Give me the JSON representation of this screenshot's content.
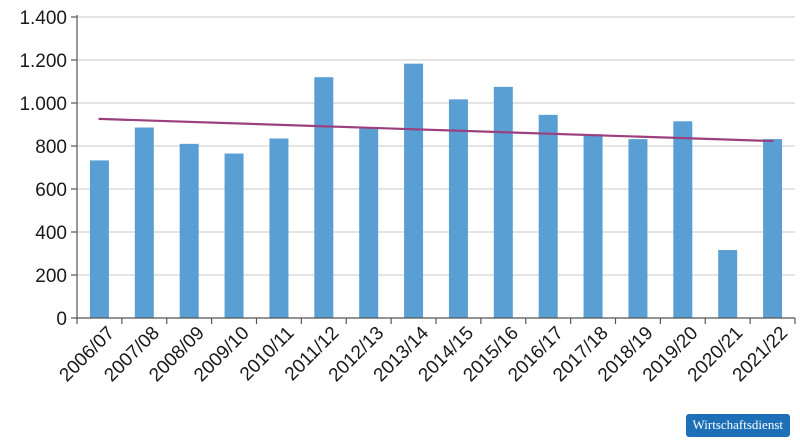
{
  "chart_data": {
    "type": "bar",
    "title": "",
    "xlabel": "",
    "ylabel": "",
    "categories": [
      "2006/07",
      "2007/08",
      "2008/09",
      "2009/10",
      "2010/11",
      "2011/12",
      "2012/13",
      "2013/14",
      "2014/15",
      "2015/16",
      "2016/17",
      "2017/18",
      "2018/19",
      "2019/20",
      "2020/21",
      "2021/22"
    ],
    "values": [
      733,
      886,
      810,
      765,
      835,
      1120,
      885,
      1183,
      1017,
      1075,
      945,
      855,
      832,
      915,
      316,
      832
    ],
    "y_tick_labels": [
      "0",
      "200",
      "400",
      "600",
      "800",
      "1.000",
      "1.200",
      "1.400"
    ],
    "y_tick_values": [
      0,
      200,
      400,
      600,
      800,
      1000,
      1200,
      1400
    ],
    "ylim": [
      0,
      1400
    ],
    "trendline": {
      "start": 926,
      "end": 823
    },
    "colors": {
      "bar": "#5a9fd4",
      "trend": "#9b3f7e",
      "axis": "#555555",
      "grid": "#c8c8c8"
    }
  },
  "badge": {
    "label": "Wirtschaftsdienst"
  }
}
